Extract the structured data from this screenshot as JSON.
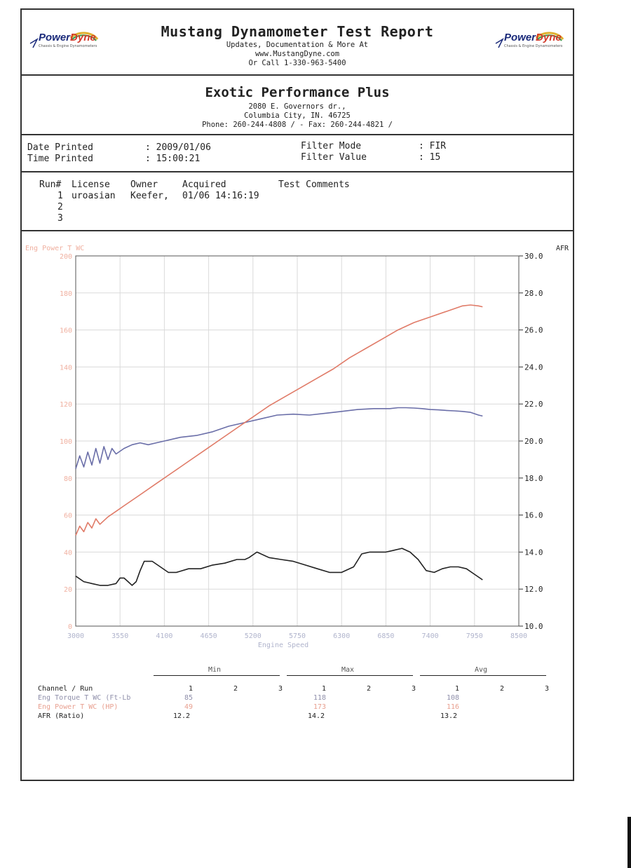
{
  "header": {
    "title": "Mustang Dynamometer Test Report",
    "line1": "Updates, Documentation & More At",
    "line2": "www.MustangDyne.com",
    "line3": "Or Call 1-330-963-5400",
    "logo_left": {
      "part1": "Power",
      "part2": "Dyne",
      "tagline": "Chassis & Engine Dynamometers"
    },
    "logo_right": {
      "part1": "Power",
      "part2": "Dyne",
      "tagline": "Chassis & Engine Dynamometers"
    }
  },
  "shop": {
    "name": "Exotic Performance Plus",
    "address": "2080 E. Governors dr.,",
    "city": "Columbia City, IN.  46725",
    "contact": "Phone: 260-244-4808 /  - Fax: 260-244-4821 /"
  },
  "info": {
    "date_label": "Date Printed",
    "date_value": ": 2009/01/06",
    "time_label": "Time Printed",
    "time_value": ": 15:00:21",
    "filter_mode_label": "Filter Mode",
    "filter_mode_value": ": FIR",
    "filter_value_label": "Filter Value",
    "filter_value_value": ": 15"
  },
  "runs": {
    "headers": [
      "Run#",
      "License",
      "Owner",
      "Acquired",
      "Test Comments"
    ],
    "rows": [
      {
        "run": "1",
        "license": "uroasian",
        "owner": "Keefer,",
        "acquired": "01/06 14:16:19"
      },
      {
        "run": "2",
        "license": "",
        "owner": "",
        "acquired": ""
      },
      {
        "run": "3",
        "license": "",
        "owner": "",
        "acquired": ""
      }
    ]
  },
  "chart_data": {
    "type": "line",
    "left_axis_label": "Eng Power T WC",
    "right_axis_label": "AFR",
    "xlabel": "Engine Speed",
    "xlim": [
      3000,
      8500
    ],
    "ylim_left": [
      0,
      200
    ],
    "ylim_right": [
      10.0,
      30.0
    ],
    "x_ticks": [
      "3000",
      "3550",
      "4100",
      "4650",
      "5200",
      "5750",
      "6300",
      "6850",
      "7400",
      "7950",
      "8500"
    ],
    "y_left_ticks": [
      "0",
      "20",
      "40",
      "60",
      "80",
      "100",
      "120",
      "140",
      "160",
      "180",
      "200"
    ],
    "y_right_ticks": [
      "10.0",
      "12.0",
      "14.0",
      "16.0",
      "18.0",
      "20.0",
      "22.0",
      "24.0",
      "26.0",
      "28.0",
      "30.0"
    ],
    "grid": true,
    "colors": {
      "torque": "#6a6ea8",
      "power": "#e07b68",
      "afr": "#222222",
      "grid": "#dadada"
    },
    "series": [
      {
        "key": "torque",
        "axis": "left",
        "x": [
          3000,
          3050,
          3100,
          3150,
          3200,
          3250,
          3300,
          3350,
          3400,
          3450,
          3500,
          3600,
          3700,
          3800,
          3900,
          4000,
          4100,
          4300,
          4500,
          4700,
          4900,
          5100,
          5300,
          5500,
          5700,
          5900,
          6100,
          6300,
          6500,
          6700,
          6900,
          7000,
          7100,
          7200,
          7300,
          7400,
          7500,
          7600,
          7700,
          7800,
          7900,
          8000,
          8050
        ],
        "y": [
          85,
          92,
          86,
          94,
          87,
          96,
          88,
          97,
          90,
          96,
          93,
          96,
          98,
          99,
          98,
          99,
          100,
          102,
          103,
          105,
          108,
          110,
          112,
          114,
          114.5,
          114,
          115,
          116,
          117,
          117.5,
          117.5,
          118,
          118,
          117.8,
          117.5,
          117,
          116.8,
          116.5,
          116.3,
          116,
          115.5,
          114,
          113.5
        ]
      },
      {
        "key": "power",
        "axis": "left",
        "x": [
          3000,
          3050,
          3100,
          3150,
          3200,
          3250,
          3300,
          3400,
          3500,
          3600,
          3800,
          4000,
          4200,
          4400,
          4600,
          4800,
          5000,
          5200,
          5400,
          5600,
          5800,
          6000,
          6200,
          6400,
          6600,
          6800,
          7000,
          7200,
          7400,
          7600,
          7800,
          7900,
          8000,
          8050
        ],
        "y": [
          49,
          54,
          51,
          56,
          53,
          58,
          55,
          59,
          62,
          65,
          71,
          77,
          83,
          89,
          95,
          101,
          107,
          113,
          119,
          124,
          129,
          134,
          139,
          145,
          150,
          155,
          160,
          164,
          167,
          170,
          173,
          173.5,
          173,
          172.5
        ]
      },
      {
        "key": "afr",
        "axis": "right",
        "x": [
          3000,
          3100,
          3200,
          3300,
          3400,
          3500,
          3550,
          3600,
          3650,
          3700,
          3750,
          3800,
          3850,
          3950,
          4050,
          4150,
          4250,
          4400,
          4550,
          4700,
          4850,
          5000,
          5100,
          5150,
          5250,
          5400,
          5550,
          5700,
          5850,
          6000,
          6150,
          6300,
          6450,
          6550,
          6650,
          6750,
          6850,
          6950,
          7050,
          7150,
          7250,
          7350,
          7450,
          7550,
          7650,
          7750,
          7850,
          7950,
          8050
        ],
        "y": [
          12.7,
          12.4,
          12.3,
          12.2,
          12.2,
          12.3,
          12.6,
          12.6,
          12.4,
          12.2,
          12.4,
          13.0,
          13.5,
          13.5,
          13.2,
          12.9,
          12.9,
          13.1,
          13.1,
          13.3,
          13.4,
          13.6,
          13.6,
          13.7,
          14.0,
          13.7,
          13.6,
          13.5,
          13.3,
          13.1,
          12.9,
          12.9,
          13.2,
          13.9,
          14.0,
          14.0,
          14.0,
          14.1,
          14.2,
          14.0,
          13.6,
          13.0,
          12.9,
          13.1,
          13.2,
          13.2,
          13.1,
          12.8,
          12.5
        ]
      }
    ]
  },
  "summary": {
    "groups": [
      "Min",
      "Max",
      "Avg"
    ],
    "channel_header": "Channel / Run",
    "run_numbers": [
      "1",
      "2",
      "3"
    ],
    "rows": [
      {
        "name": "Eng Torque T WC (Ft-Lb",
        "min": "85",
        "max": "118",
        "avg": "108"
      },
      {
        "name": "Eng Power T WC (HP)",
        "min": "49",
        "max": "173",
        "avg": "116"
      },
      {
        "name": "AFR (Ratio)",
        "min": "12.2",
        "max": "14.2",
        "avg": "13.2"
      }
    ]
  }
}
